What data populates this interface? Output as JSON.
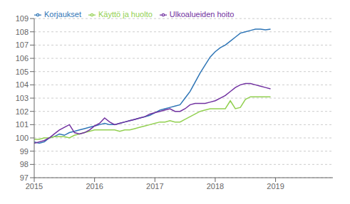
{
  "chart_data": {
    "type": "line",
    "x": [
      2015,
      2015.083333,
      2015.166667,
      2015.25,
      2015.333333,
      2015.416667,
      2015.5,
      2015.583333,
      2015.666667,
      2015.75,
      2015.833333,
      2015.916667,
      2016,
      2016.083333,
      2016.166667,
      2016.25,
      2016.333333,
      2016.416667,
      2016.5,
      2016.583333,
      2016.666667,
      2016.75,
      2016.833333,
      2016.916667,
      2017,
      2017.083333,
      2017.166667,
      2017.25,
      2017.333333,
      2017.416667,
      2017.5,
      2017.583333,
      2017.666667,
      2017.75,
      2017.833333,
      2017.916667,
      2018,
      2018.083333,
      2018.166667,
      2018.25,
      2018.333333,
      2018.416667,
      2018.5,
      2018.583333,
      2018.666667,
      2018.75,
      2018.833333,
      2018.916667
    ],
    "series": [
      {
        "name": "Korjaukset",
        "color": "#2E75B6",
        "values": [
          99.7,
          99.6,
          99.7,
          100.0,
          100.1,
          100.3,
          100.2,
          100.4,
          100.5,
          100.6,
          100.7,
          100.8,
          100.9,
          101.0,
          101.1,
          101.0,
          101.0,
          101.1,
          101.2,
          101.3,
          101.4,
          101.5,
          101.6,
          101.7,
          101.9,
          102.1,
          102.2,
          102.3,
          102.4,
          102.5,
          103.0,
          103.5,
          104.2,
          104.9,
          105.5,
          106.1,
          106.5,
          106.8,
          107.0,
          107.3,
          107.6,
          107.9,
          108.0,
          108.1,
          108.2,
          108.2,
          108.15,
          108.2
        ]
      },
      {
        "name": "Käyttö ja huolto",
        "color": "#92D050",
        "values": [
          99.9,
          99.9,
          100.0,
          100.0,
          100.1,
          100.1,
          100.1,
          100.0,
          100.2,
          100.3,
          100.4,
          100.5,
          100.6,
          100.6,
          100.6,
          100.6,
          100.6,
          100.5,
          100.6,
          100.6,
          100.7,
          100.8,
          100.9,
          101.0,
          101.1,
          101.2,
          101.2,
          101.3,
          101.2,
          101.2,
          101.4,
          101.6,
          101.8,
          102.0,
          102.1,
          102.2,
          102.2,
          102.2,
          102.2,
          102.8,
          102.2,
          102.3,
          102.9,
          103.1,
          103.1,
          103.1,
          103.1,
          103.1
        ]
      },
      {
        "name": "Ulkoalueiden hoito",
        "color": "#7030A0",
        "values": [
          99.6,
          99.7,
          99.8,
          100.0,
          100.3,
          100.6,
          100.8,
          101.0,
          100.4,
          100.3,
          100.4,
          100.6,
          100.9,
          101.1,
          101.5,
          101.2,
          101.0,
          101.1,
          101.2,
          101.3,
          101.4,
          101.5,
          101.6,
          101.8,
          101.9,
          102.0,
          102.1,
          102.2,
          102.0,
          102.0,
          102.2,
          102.5,
          102.6,
          102.6,
          102.6,
          102.7,
          102.8,
          103.0,
          103.2,
          103.5,
          103.8,
          104.0,
          104.1,
          104.1,
          104.0,
          103.9,
          103.8,
          103.7
        ]
      }
    ],
    "xlim": [
      2015,
      2019.95
    ],
    "xticks": [
      2015,
      2016,
      2017,
      2018,
      2019
    ],
    "ylim": [
      97,
      109
    ],
    "yticks": [
      97,
      98,
      99,
      100,
      101,
      102,
      103,
      104,
      105,
      106,
      107,
      108,
      109
    ],
    "grid": true,
    "legend": "upper left"
  }
}
